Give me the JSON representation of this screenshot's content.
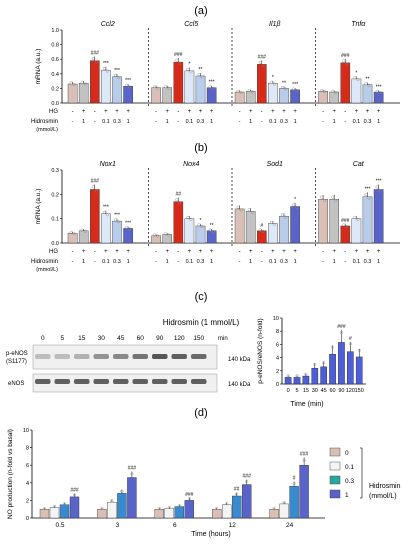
{
  "panel_labels": {
    "a": "(a)",
    "b": "(b)",
    "c": "(c)",
    "d": "(d)"
  },
  "treatment_rows": {
    "hg_label": "HG",
    "hidrosmin_label": "Hidrosmin",
    "unit_label": "(mmol/L)",
    "hg": [
      "-",
      "+",
      "-",
      "+",
      "+",
      "+"
    ],
    "hidrosmin": [
      "-",
      "1",
      "-",
      "0.1",
      "0.3",
      "1"
    ]
  },
  "western": {
    "title": "Hidrosmin (1 mmol/L)",
    "times": [
      "0",
      "5",
      "15",
      "30",
      "45",
      "60",
      "90",
      "120",
      "150"
    ],
    "time_unit": "min",
    "peNOS_label_1": "p-eNOS",
    "peNOS_label_2": "(S1177)",
    "eNOS_label": "eNOS",
    "kda_1": "140 kDa",
    "kda_2": "140 kDa"
  },
  "colors": {
    "c1": "#d9bfb6",
    "c2": "#c2c2c2",
    "c3": "#d62a1b",
    "c4": "#dde9f8",
    "c5": "#b9cdeb",
    "c6": "#5a64c8",
    "b_colors": [
      "#d4d4d4",
      "#9e9e9e",
      "#4a4a4a",
      "#5a6cd8"
    ],
    "hg_marker_green": "#2aa84a",
    "hg_marker_red": "#d62a1b"
  },
  "chart_data": [
    {
      "type": "bar",
      "panel": "(a)",
      "ylabel": "mRNA (a.u.)",
      "ylim": [
        0,
        1
      ],
      "yticks": [
        "0.0",
        "0.2",
        "0.4",
        "0.6",
        "0.8",
        "1.0"
      ],
      "groups": [
        {
          "name": "Ccl2",
          "values": [
            0.26,
            0.27,
            0.58,
            0.45,
            0.36,
            0.23
          ],
          "marks": [
            "",
            "",
            "###",
            "***",
            "***",
            "***"
          ]
        },
        {
          "name": "Ccl5",
          "values": [
            0.21,
            0.21,
            0.56,
            0.44,
            0.37,
            0.21
          ],
          "marks": [
            "",
            "",
            "###",
            "*",
            "**",
            "***"
          ]
        },
        {
          "name": "Il1β",
          "values": [
            0.15,
            0.16,
            0.53,
            0.27,
            0.2,
            0.18
          ],
          "marks": [
            "",
            "",
            "###",
            "*",
            "**",
            "***"
          ]
        },
        {
          "name": "Tnfα",
          "values": [
            0.16,
            0.15,
            0.55,
            0.33,
            0.25,
            0.15
          ],
          "marks": [
            "",
            "",
            "###",
            "*",
            "**",
            "***"
          ]
        }
      ]
    },
    {
      "type": "bar",
      "panel": "(b)",
      "ylabel": "mRNA (a.u.)",
      "ylim": [
        0,
        0.3
      ],
      "yticks": [
        "0.0",
        "0.1",
        "0.2",
        "0.3"
      ],
      "groups": [
        {
          "name": "Nox1",
          "values": [
            0.04,
            0.05,
            0.22,
            0.12,
            0.09,
            0.06
          ],
          "marks": [
            "",
            "",
            "###",
            "***",
            "***",
            "***"
          ]
        },
        {
          "name": "Nox4",
          "values": [
            0.03,
            0.035,
            0.17,
            0.1,
            0.07,
            0.05
          ],
          "marks": [
            "",
            "",
            "##",
            "",
            "*",
            "**"
          ]
        },
        {
          "name": "Sod1",
          "values": [
            0.14,
            0.13,
            0.05,
            0.08,
            0.11,
            0.15
          ],
          "marks": [
            "",
            "",
            "#",
            "",
            "",
            "*"
          ]
        },
        {
          "name": "Cat",
          "values": [
            0.18,
            0.18,
            0.07,
            0.1,
            0.19,
            0.22
          ],
          "marks": [
            "",
            "",
            "###",
            "",
            "***",
            "***"
          ]
        }
      ]
    },
    {
      "type": "bar",
      "panel": "(c)",
      "ylabel": "p-eNOS/eNOS (n-fold)",
      "xlabel": "Time (min)",
      "categories": [
        "0",
        "5",
        "15",
        "30",
        "45",
        "60",
        "90",
        "120",
        "150"
      ],
      "values": [
        1,
        1,
        1.2,
        2.4,
        2.6,
        4.5,
        6.3,
        4.9,
        4.1
      ],
      "marks": [
        "",
        "",
        "",
        "",
        "",
        "",
        "###",
        "#",
        ""
      ],
      "ylim": [
        0,
        10
      ],
      "yticks": [
        "0",
        "2",
        "4",
        "6",
        "8",
        "10"
      ],
      "color": "#4d5ed8"
    },
    {
      "type": "bar",
      "panel": "(d)",
      "ylabel": "NO production (n-fold vs basal)",
      "xlabel": "Time (hours)",
      "categories": [
        "0.5",
        "3",
        "6",
        "12",
        "24"
      ],
      "series": [
        {
          "name": "0",
          "values": [
            1,
            1,
            1,
            1,
            1
          ]
        },
        {
          "name": "0.1",
          "values": [
            1.2,
            1.8,
            1.1,
            1.5,
            1.6
          ]
        },
        {
          "name": "0.3",
          "values": [
            1.5,
            2.8,
            1.3,
            2.5,
            3.6
          ]
        },
        {
          "name": "1",
          "values": [
            2.4,
            4.6,
            2.0,
            3.8,
            6.0
          ]
        }
      ],
      "marks": [
        [
          "",
          "",
          "",
          "###"
        ],
        [
          "",
          "",
          "",
          "###"
        ],
        [
          "",
          "",
          "",
          "###"
        ],
        [
          "",
          "",
          "##",
          "###"
        ],
        [
          "",
          "",
          "#",
          "###"
        ]
      ],
      "legend_title": "Hidrosmin",
      "legend_unit": "(mmol/L)",
      "ylim": [
        0,
        10
      ],
      "yticks": [
        "0",
        "2",
        "4",
        "6",
        "8",
        "10"
      ]
    }
  ]
}
